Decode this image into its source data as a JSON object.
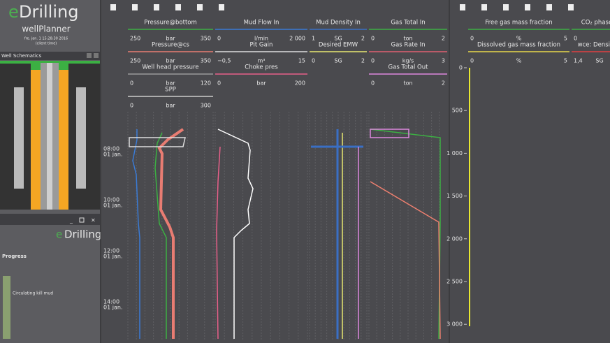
{
  "app": {
    "logo_mark": "e",
    "logo": "Drilling",
    "name": "wellPlanner",
    "datetime": "fre. jan. 1 15:28:30 2016",
    "time_note": "(client time)"
  },
  "well_schematics": {
    "title": "Well Schematics"
  },
  "drilling_panel": {
    "logo_mark": "e",
    "logo": "Drilling",
    "progress_title": "Progress",
    "progress_label": "Circulating kill mud"
  },
  "left_tracks": [
    [
      {
        "title": "Pressure@bottom",
        "min": "250",
        "unit": "bar",
        "max": "350",
        "color": "#3cb043"
      },
      {
        "title": "Pressure@cs",
        "min": "250",
        "unit": "bar",
        "max": "350",
        "color": "#e87c72"
      },
      {
        "title": "Well head pressure",
        "min": "0",
        "unit": "bar",
        "max": "120",
        "color": "#9a9a9a"
      },
      {
        "title": "SPP",
        "min": "0",
        "unit": "bar",
        "max": "300",
        "color": "#cccccc"
      }
    ],
    [
      {
        "title": "Mud Flow In",
        "min": "0",
        "unit": "l/min",
        "max": "2 000",
        "color": "#3a7bd5"
      },
      {
        "title": "Pit Gain",
        "min": "−0,5",
        "unit": "m³",
        "max": "15",
        "color": "#dddddd"
      },
      {
        "title": "Choke pres",
        "min": "0",
        "unit": "bar",
        "max": "200",
        "color": "#e8608a"
      }
    ],
    [
      {
        "title": "Mud Density In",
        "min": "1",
        "unit": "SG",
        "max": "2",
        "color": "#3a6fc4"
      },
      {
        "title": "Desired EMW",
        "min": "0",
        "unit": "SG",
        "max": "2",
        "color": "#e8e870"
      }
    ],
    [
      {
        "title": "Gas Total In",
        "min": "0",
        "unit": "ton",
        "max": "2",
        "color": "#3cb043"
      },
      {
        "title": "Gas Rate In",
        "min": "0",
        "unit": "kg/s",
        "max": "3",
        "color": "#e06070"
      },
      {
        "title": "Gas Total Out",
        "min": "0",
        "unit": "ton",
        "max": "2",
        "color": "#dd88dd"
      }
    ]
  ],
  "right_tracks": [
    [
      {
        "title": "Free gas mass fraction",
        "min": "0",
        "unit": "%",
        "max": "5",
        "color": "#3cb043"
      },
      {
        "title": "Dissolved gas mass fraction",
        "min": "0",
        "unit": "%",
        "max": "5",
        "color": "#e8d84a"
      }
    ],
    [
      {
        "title": "CO₂ phase",
        "min": "0",
        "color": "#3cb043"
      },
      {
        "title": "wce: Density",
        "min": "1,4",
        "unit": "SG",
        "color": "#e04040"
      }
    ]
  ],
  "time_axis": [
    {
      "time": "08:00",
      "date": "01 jan."
    },
    {
      "time": "10:00",
      "date": "01 jan."
    },
    {
      "time": "12:00",
      "date": "01 jan."
    },
    {
      "time": "14:00",
      "date": "01 jan."
    }
  ],
  "depth_axis": [
    "0",
    "500",
    "1 000",
    "1 500",
    "2 000",
    "2 500",
    "3 000"
  ]
}
